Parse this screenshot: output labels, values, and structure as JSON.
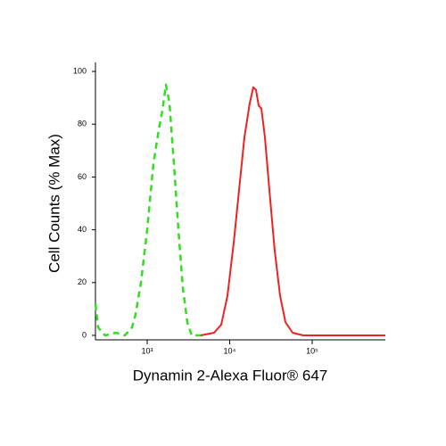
{
  "chart_data": {
    "type": "line",
    "xlabel": "Dynamin 2-Alexa Fluor® 647",
    "ylabel": "Cell Counts (% Max)",
    "xscale": "log",
    "xlim": [
      236,
      770000
    ],
    "ylim": [
      -1.7,
      103.4
    ],
    "xticks": [
      {
        "value": 1000,
        "label": "10³"
      },
      {
        "value": 10000,
        "label": "10⁴"
      },
      {
        "value": 100000,
        "label": "10⁵"
      }
    ],
    "yticks": [
      0,
      20,
      40,
      60,
      80,
      100
    ],
    "series": [
      {
        "color": "#33dd22",
        "dash": true,
        "x": [
          236,
          254,
          309,
          418,
          537,
          655,
          723,
          839,
          1000,
          1190,
          1382,
          1527,
          1688,
          1863,
          2110,
          2390,
          2705,
          3064,
          3467,
          5047
        ],
        "values": [
          12,
          3,
          0,
          1,
          0,
          3,
          8,
          20,
          40,
          65,
          78,
          85,
          95,
          88,
          65,
          40,
          18,
          5,
          0,
          0
        ]
      },
      {
        "color": "#ee2222",
        "dash": false,
        "x": [
          4456,
          6474,
          7890,
          9390,
          11190,
          13000,
          15080,
          17500,
          19330,
          20840,
          22440,
          24200,
          26730,
          30270,
          35160,
          40830,
          47420,
          57830,
          77980,
          769000
        ],
        "values": [
          0,
          1,
          4,
          15,
          35,
          55,
          75,
          88,
          94,
          93,
          87,
          86,
          75,
          55,
          32,
          15,
          5,
          1,
          0,
          0
        ]
      }
    ]
  }
}
